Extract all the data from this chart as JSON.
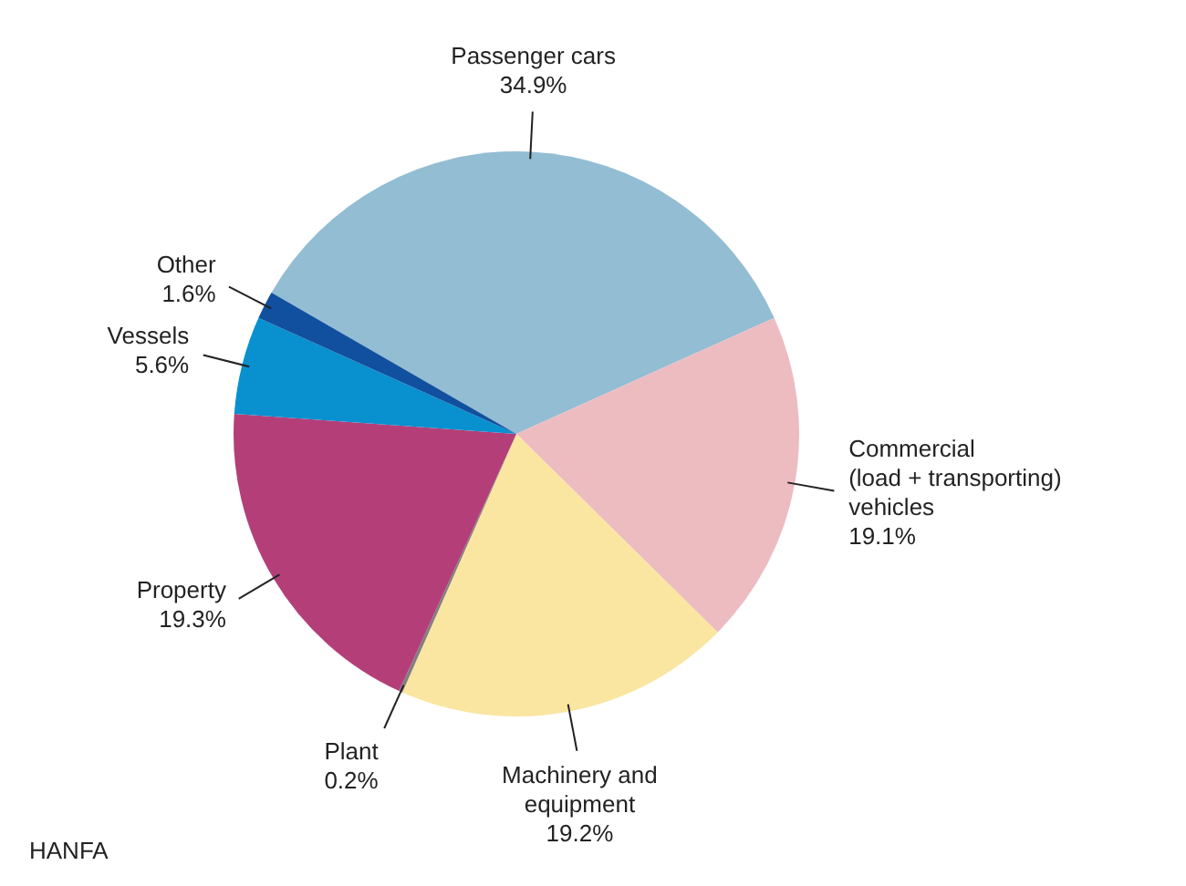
{
  "chart_data": {
    "type": "pie",
    "categories": [
      "Passenger cars",
      "Commercial\n(load + transporting)\nvehicles",
      "Machinery and\nequipment",
      "Plant",
      "Property",
      "Vessels",
      "Other"
    ],
    "values": [
      34.9,
      19.1,
      19.2,
      0.2,
      19.3,
      5.6,
      1.6
    ],
    "value_labels": [
      "34.9%",
      "19.1%",
      "19.2%",
      "0.2%",
      "19.3%",
      "5.6%",
      "1.6%"
    ],
    "colors": [
      "#93bdd3",
      "#ecbcc1",
      "#fae6a1",
      "#7f7f7f",
      "#b43f78",
      "#0890cf",
      "#11509f"
    ],
    "annotations": [
      "HANFA"
    ],
    "legend": false
  }
}
